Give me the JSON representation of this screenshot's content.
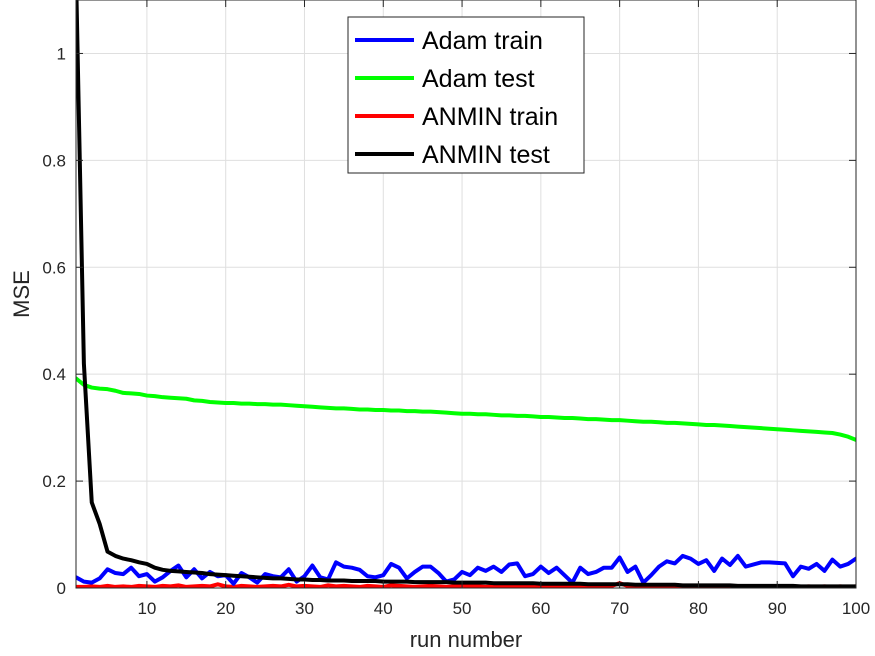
{
  "chart_data": {
    "type": "line",
    "title": "",
    "xlabel": "run number",
    "ylabel": "MSE",
    "xlim": [
      1,
      100
    ],
    "ylim": [
      0,
      1.1
    ],
    "xticks": [
      10,
      20,
      30,
      40,
      50,
      60,
      70,
      80,
      90,
      100
    ],
    "yticks": [
      0,
      0.2,
      0.4,
      0.6,
      0.8,
      1
    ],
    "grid": true,
    "legend_position": "top-center",
    "x": [
      1,
      2,
      3,
      4,
      5,
      6,
      7,
      8,
      9,
      10,
      11,
      12,
      13,
      14,
      15,
      16,
      17,
      18,
      19,
      20,
      21,
      22,
      23,
      24,
      25,
      26,
      27,
      28,
      29,
      30,
      31,
      32,
      33,
      34,
      35,
      36,
      37,
      38,
      39,
      40,
      41,
      42,
      43,
      44,
      45,
      46,
      47,
      48,
      49,
      50,
      51,
      52,
      53,
      54,
      55,
      56,
      57,
      58,
      59,
      60,
      61,
      62,
      63,
      64,
      65,
      66,
      67,
      68,
      69,
      70,
      71,
      72,
      73,
      74,
      75,
      76,
      77,
      78,
      79,
      80,
      81,
      82,
      83,
      84,
      85,
      86,
      87,
      88,
      89,
      90,
      91,
      92,
      93,
      94,
      95,
      96,
      97,
      98,
      99,
      100
    ],
    "series": [
      {
        "name": "Adam train",
        "color": "#0000ff",
        "values": [
          0.02,
          0.012,
          0.01,
          0.018,
          0.035,
          0.028,
          0.026,
          0.038,
          0.022,
          0.026,
          0.012,
          0.02,
          0.032,
          0.042,
          0.02,
          0.035,
          0.018,
          0.03,
          0.022,
          0.024,
          0.008,
          0.028,
          0.02,
          0.01,
          0.026,
          0.022,
          0.02,
          0.035,
          0.012,
          0.022,
          0.042,
          0.02,
          0.016,
          0.048,
          0.04,
          0.038,
          0.034,
          0.022,
          0.02,
          0.024,
          0.045,
          0.038,
          0.018,
          0.03,
          0.04,
          0.04,
          0.028,
          0.012,
          0.016,
          0.03,
          0.024,
          0.038,
          0.032,
          0.04,
          0.03,
          0.044,
          0.046,
          0.022,
          0.026,
          0.04,
          0.028,
          0.038,
          0.024,
          0.01,
          0.038,
          0.026,
          0.03,
          0.038,
          0.038,
          0.057,
          0.03,
          0.04,
          0.01,
          0.024,
          0.04,
          0.05,
          0.046,
          0.06,
          0.055,
          0.045,
          0.052,
          0.032,
          0.055,
          0.043,
          0.06,
          0.04,
          0.044,
          0.048,
          0.048,
          0.047,
          0.046,
          0.022,
          0.04,
          0.036,
          0.045,
          0.032,
          0.053,
          0.04,
          0.045,
          0.055
        ]
      },
      {
        "name": "Adam test",
        "color": "#00ff00",
        "values": [
          0.392,
          0.38,
          0.375,
          0.373,
          0.372,
          0.369,
          0.365,
          0.364,
          0.363,
          0.36,
          0.359,
          0.357,
          0.356,
          0.355,
          0.354,
          0.351,
          0.35,
          0.348,
          0.347,
          0.346,
          0.346,
          0.345,
          0.345,
          0.344,
          0.344,
          0.343,
          0.343,
          0.342,
          0.341,
          0.34,
          0.339,
          0.338,
          0.337,
          0.336,
          0.336,
          0.335,
          0.334,
          0.334,
          0.333,
          0.333,
          0.332,
          0.332,
          0.331,
          0.331,
          0.33,
          0.33,
          0.329,
          0.328,
          0.327,
          0.326,
          0.326,
          0.325,
          0.325,
          0.324,
          0.323,
          0.323,
          0.322,
          0.322,
          0.321,
          0.32,
          0.32,
          0.319,
          0.318,
          0.318,
          0.317,
          0.316,
          0.316,
          0.315,
          0.314,
          0.314,
          0.313,
          0.312,
          0.311,
          0.311,
          0.31,
          0.309,
          0.309,
          0.308,
          0.307,
          0.306,
          0.305,
          0.305,
          0.304,
          0.303,
          0.302,
          0.301,
          0.3,
          0.299,
          0.298,
          0.297,
          0.296,
          0.295,
          0.294,
          0.293,
          0.292,
          0.291,
          0.29,
          0.287,
          0.283,
          0.277
        ]
      },
      {
        "name": "ANMIN train",
        "color": "#ff0000",
        "values": [
          0.002,
          0.002,
          0.003,
          0.002,
          0.004,
          0.002,
          0.003,
          0.002,
          0.004,
          0.003,
          0.002,
          0.004,
          0.003,
          0.005,
          0.002,
          0.003,
          0.004,
          0.003,
          0.007,
          0.003,
          0.002,
          0.004,
          0.003,
          0.002,
          0.003,
          0.004,
          0.003,
          0.006,
          0.003,
          0.004,
          0.003,
          0.002,
          0.005,
          0.003,
          0.004,
          0.003,
          0.002,
          0.004,
          0.003,
          0.002,
          0.005,
          0.004,
          0.003,
          0.002,
          0.003,
          0.004,
          0.003,
          0.002,
          0.003,
          0.005,
          0.004,
          0.003,
          0.002,
          0.003,
          0.004,
          0.003,
          0.002,
          0.003,
          0.004,
          0.003,
          0.002,
          0.003,
          0.004,
          0.003,
          0.002,
          0.003,
          0.004,
          0.003,
          0.004,
          0.009,
          0.004,
          0.003,
          0.002,
          0.003,
          0.004,
          0.003,
          0.002,
          0.003,
          0.004,
          0.003,
          0.002,
          0.003,
          0.002,
          0.003,
          0.002,
          0.003,
          0.002,
          0.003,
          0.002,
          0.003,
          0.002,
          0.003,
          0.002,
          0.003,
          0.002,
          0.003,
          0.002,
          0.003,
          0.002,
          0.003
        ]
      },
      {
        "name": "ANMIN test",
        "color": "#000000",
        "values": [
          1.15,
          0.42,
          0.16,
          0.12,
          0.068,
          0.06,
          0.055,
          0.052,
          0.048,
          0.045,
          0.038,
          0.034,
          0.032,
          0.031,
          0.03,
          0.029,
          0.028,
          0.026,
          0.025,
          0.024,
          0.023,
          0.022,
          0.021,
          0.02,
          0.019,
          0.018,
          0.018,
          0.017,
          0.016,
          0.016,
          0.015,
          0.015,
          0.014,
          0.014,
          0.014,
          0.013,
          0.013,
          0.013,
          0.013,
          0.012,
          0.012,
          0.012,
          0.012,
          0.011,
          0.011,
          0.011,
          0.011,
          0.011,
          0.01,
          0.01,
          0.01,
          0.01,
          0.01,
          0.009,
          0.009,
          0.009,
          0.009,
          0.009,
          0.009,
          0.008,
          0.008,
          0.008,
          0.008,
          0.008,
          0.008,
          0.007,
          0.007,
          0.007,
          0.007,
          0.007,
          0.007,
          0.006,
          0.006,
          0.006,
          0.006,
          0.006,
          0.006,
          0.005,
          0.005,
          0.005,
          0.005,
          0.005,
          0.005,
          0.005,
          0.004,
          0.004,
          0.004,
          0.004,
          0.004,
          0.004,
          0.004,
          0.004,
          0.003,
          0.003,
          0.003,
          0.003,
          0.003,
          0.003,
          0.003,
          0.003
        ]
      }
    ]
  }
}
